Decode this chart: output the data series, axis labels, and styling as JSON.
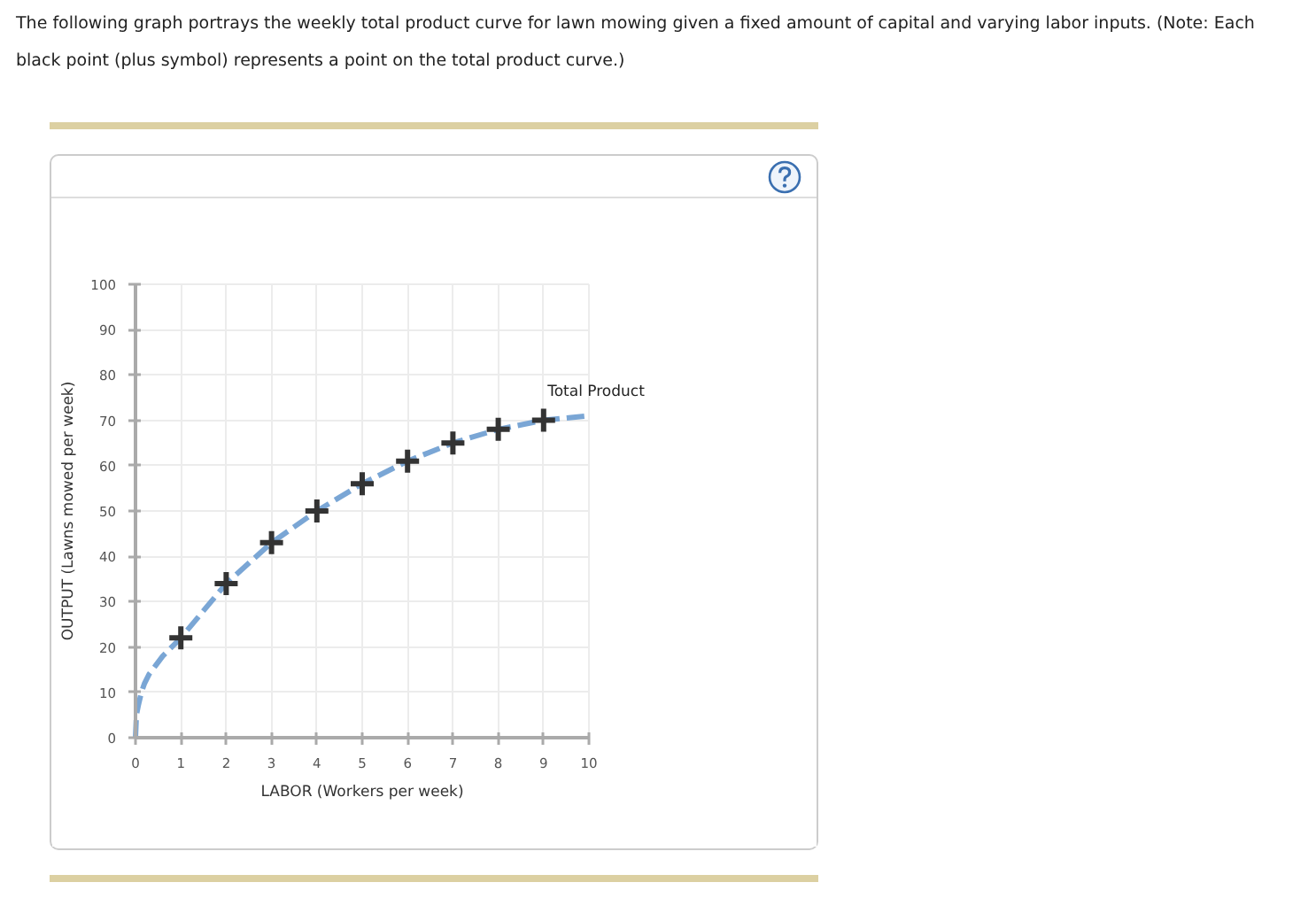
{
  "chart_data": {
    "type": "line",
    "title": "The following graph portrays the weekly total product curve for lawn mowing given a fixed amount of capital and varying labor inputs. (Note: Each black point (plus symbol) represents a point on the total product curve.)",
    "xlabel": "LABOR (Workers per week)",
    "ylabel": "OUTPUT (Lawns mowed per week)",
    "xlim": [
      0,
      10
    ],
    "ylim": [
      0,
      100
    ],
    "xticks": [
      0,
      1,
      2,
      3,
      4,
      5,
      6,
      7,
      8,
      9,
      10
    ],
    "yticks": [
      0,
      10,
      20,
      30,
      40,
      50,
      60,
      70,
      80,
      90,
      100
    ],
    "grid": true,
    "series": [
      {
        "name": "Total Product",
        "type": "line",
        "color": "#7aa6d5",
        "line_style": "dashed",
        "marker": "none",
        "x": [
          0,
          0.02,
          0.06,
          0.13,
          0.2,
          0.3,
          0.45,
          0.6,
          0.8,
          1,
          2,
          3,
          4,
          5,
          6,
          7,
          8,
          9,
          10
        ],
        "values": [
          0,
          5,
          7,
          10,
          12,
          14,
          16,
          18,
          20,
          22,
          34,
          43,
          50,
          56,
          61,
          65,
          68,
          70,
          71
        ]
      },
      {
        "type": "scatter",
        "color": "#333333",
        "marker": "cross",
        "x": [
          1,
          2,
          3,
          4,
          5,
          6,
          7,
          8,
          9
        ],
        "values": [
          22,
          34,
          43,
          50,
          56,
          61,
          65,
          68,
          70
        ]
      }
    ]
  }
}
